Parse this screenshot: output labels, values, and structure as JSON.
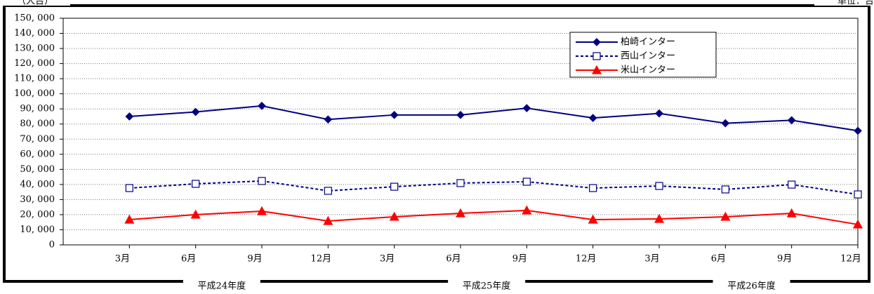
{
  "chart_data": {
    "type": "line",
    "y_unit_label": "（人台）",
    "unit_note": "単位：台",
    "categories": [
      "3月",
      "6月",
      "9月",
      "12月",
      "3月",
      "6月",
      "9月",
      "12月",
      "3月",
      "6月",
      "9月",
      "12月"
    ],
    "groups": [
      "平成24年度",
      "平成25年度",
      "平成26年度"
    ],
    "series": [
      {
        "name": "柏崎インター",
        "color": "#000080",
        "marker": "diamond",
        "dash": false,
        "values": [
          85000,
          88000,
          92000,
          83000,
          86000,
          86000,
          90500,
          84000,
          87000,
          80500,
          82500,
          75500
        ]
      },
      {
        "name": "西山インター",
        "color": "#000080",
        "marker": "square",
        "dash": true,
        "values": [
          37600,
          40400,
          42300,
          35800,
          38500,
          40900,
          41800,
          37600,
          39000,
          36700,
          39900,
          33400
        ]
      },
      {
        "name": "米山インター",
        "color": "#ff0000",
        "marker": "triangle",
        "dash": false,
        "values": [
          16700,
          20000,
          22300,
          15800,
          18600,
          20900,
          22800,
          16700,
          17200,
          18600,
          20900,
          13500
        ]
      }
    ],
    "ylim": [
      0,
      150000
    ],
    "yticks": [
      0,
      {
        "value": 10000,
        "label": "10, 000"
      },
      {
        "value": 20000,
        "label": "20, 000"
      },
      {
        "value": 30000,
        "label": "30, 000"
      },
      {
        "value": 40000,
        "label": "40, 000"
      },
      {
        "value": 50000,
        "label": "50, 000"
      },
      {
        "value": 60000,
        "label": "60, 000"
      },
      {
        "value": 70000,
        "label": "70, 000"
      },
      {
        "value": 80000,
        "label": "80, 000"
      },
      {
        "value": 90000,
        "label": "90, 000"
      },
      {
        "value": 100000,
        "label": "100, 000"
      },
      {
        "value": 110000,
        "label": "110, 000"
      },
      {
        "value": 120000,
        "label": "120, 000"
      },
      {
        "value": 130000,
        "label": "130, 000"
      },
      {
        "value": 140000,
        "label": "140, 000"
      },
      {
        "value": 150000,
        "label": "150, 000"
      }
    ],
    "grid": true
  }
}
